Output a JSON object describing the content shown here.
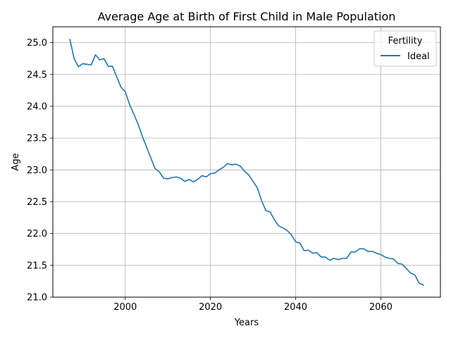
{
  "chart_data": {
    "type": "line",
    "title": "Average Age at Birth of First Child in Male Population",
    "xlabel": "Years",
    "ylabel": "Age",
    "xlim": [
      1983,
      2074
    ],
    "ylim": [
      21.0,
      25.25
    ],
    "x_ticks": [
      2000,
      2020,
      2040,
      2060
    ],
    "x_tick_labels": [
      "2000",
      "2020",
      "2040",
      "2060"
    ],
    "y_ticks": [
      21.0,
      21.5,
      22.0,
      22.5,
      23.0,
      23.5,
      24.0,
      24.5,
      25.0
    ],
    "y_tick_labels": [
      "21.0",
      "21.5",
      "22.0",
      "22.5",
      "23.0",
      "23.5",
      "24.0",
      "24.5",
      "25.0"
    ],
    "grid": true,
    "legend": {
      "title": "Fertility",
      "placement": "top-right"
    },
    "series": [
      {
        "name": "Ideal",
        "color": "#1f77b4",
        "x": [
          1987,
          1988,
          1989,
          1990,
          1991,
          1992,
          1993,
          1994,
          1995,
          1996,
          1997,
          1998,
          1999,
          2000,
          2001,
          2002,
          2003,
          2004,
          2005,
          2006,
          2007,
          2008,
          2009,
          2010,
          2011,
          2012,
          2013,
          2014,
          2015,
          2016,
          2017,
          2018,
          2019,
          2020,
          2021,
          2022,
          2023,
          2024,
          2025,
          2026,
          2027,
          2028,
          2029,
          2030,
          2031,
          2032,
          2033,
          2034,
          2035,
          2036,
          2037,
          2038,
          2039,
          2040,
          2041,
          2042,
          2043,
          2044,
          2045,
          2046,
          2047,
          2048,
          2049,
          2050,
          2051,
          2052,
          2053,
          2054,
          2055,
          2056,
          2057,
          2058,
          2059,
          2060,
          2061,
          2062,
          2063,
          2064,
          2065,
          2066,
          2067,
          2068,
          2069,
          2070
        ],
        "values": [
          25.05,
          24.75,
          24.62,
          24.67,
          24.66,
          24.65,
          24.81,
          24.73,
          24.75,
          24.63,
          24.63,
          24.46,
          24.3,
          24.23,
          24.03,
          23.88,
          23.72,
          23.53,
          23.36,
          23.19,
          23.02,
          22.97,
          22.87,
          22.86,
          22.88,
          22.89,
          22.87,
          22.82,
          22.85,
          22.81,
          22.85,
          22.91,
          22.89,
          22.94,
          22.95,
          23.0,
          23.04,
          23.1,
          23.08,
          23.09,
          23.06,
          22.98,
          22.92,
          22.82,
          22.72,
          22.52,
          22.36,
          22.34,
          22.22,
          22.12,
          22.09,
          22.05,
          21.98,
          21.87,
          21.85,
          21.73,
          21.74,
          21.69,
          21.7,
          21.63,
          21.63,
          21.58,
          21.61,
          21.59,
          21.61,
          21.61,
          21.71,
          21.71,
          21.76,
          21.76,
          21.72,
          21.72,
          21.69,
          21.67,
          21.63,
          21.61,
          21.6,
          21.53,
          21.52,
          21.45,
          21.38,
          21.35,
          21.22,
          21.19
        ]
      }
    ]
  }
}
